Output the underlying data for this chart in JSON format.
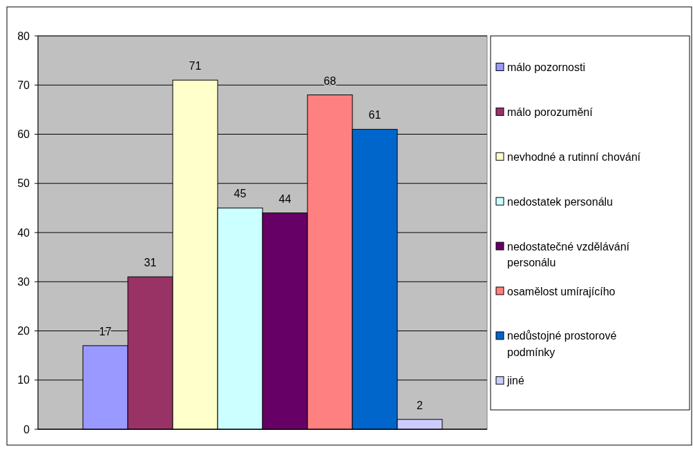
{
  "chart_data": {
    "type": "bar",
    "categories": [
      null
    ],
    "series": [
      {
        "name": "málo pozornosti",
        "color": "#9999ff",
        "values": [
          17
        ]
      },
      {
        "name": "málo porozumění",
        "color": "#993366",
        "values": [
          31
        ]
      },
      {
        "name": "nevhodné a rutinní chování",
        "color": "#ffffcc",
        "values": [
          71
        ]
      },
      {
        "name": "nedostatek personálu",
        "color": "#ccffff",
        "values": [
          45
        ]
      },
      {
        "name": "nedostatečné vzdělávání personálu",
        "color": "#660066",
        "values": [
          44
        ]
      },
      {
        "name": "osamělost umírajícího",
        "color": "#ff8080",
        "values": [
          68
        ]
      },
      {
        "name": "nedůstojné prostorové podmínky",
        "color": "#0066cc",
        "values": [
          61
        ]
      },
      {
        "name": "jiné",
        "color": "#ccccff",
        "values": [
          2
        ]
      }
    ],
    "ylim": [
      0,
      80
    ],
    "yticks": [
      0,
      10,
      20,
      30,
      40,
      50,
      60,
      70,
      80
    ],
    "grid": "y",
    "legend": "right",
    "data_labels": true
  }
}
